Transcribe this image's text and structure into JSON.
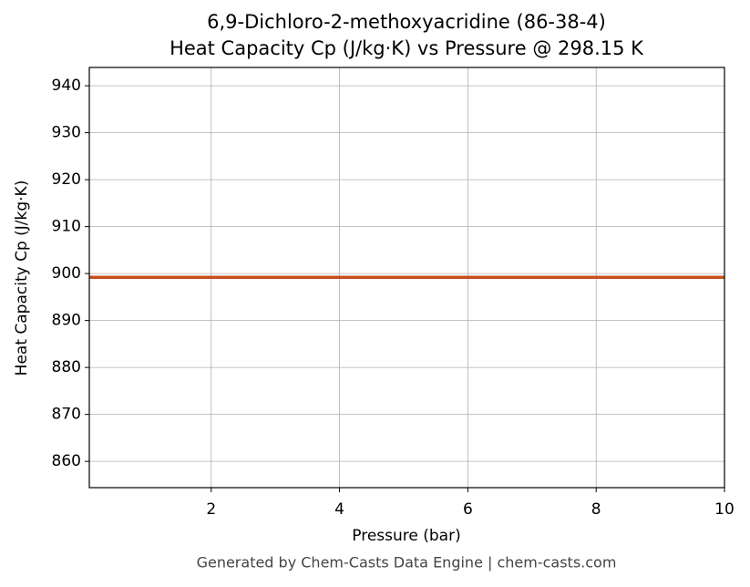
{
  "chart_data": {
    "type": "line",
    "title": "6,9-Dichloro-2-methoxyacridine (86-38-4)",
    "subtitle": "Heat Capacity Cp (J/kg·K) vs Pressure @ 298.15 K",
    "x_label": "Pressure (bar)",
    "y_label": "Heat Capacity Cp (J/kg·K)",
    "footer": "Generated by Chem-Casts Data Engine | chem-casts.com",
    "x": [
      0.1,
      10
    ],
    "series": [
      {
        "name": "Cp",
        "color": "#c8501e",
        "values": [
          899.2,
          899.2
        ]
      }
    ],
    "xlim": [
      0.1,
      10
    ],
    "xticks": [
      2,
      4,
      6,
      8,
      10
    ],
    "ylim": [
      854.4,
      943.9
    ],
    "yticks": [
      860,
      870,
      880,
      890,
      900,
      910,
      920,
      930,
      940
    ],
    "grid": true
  }
}
